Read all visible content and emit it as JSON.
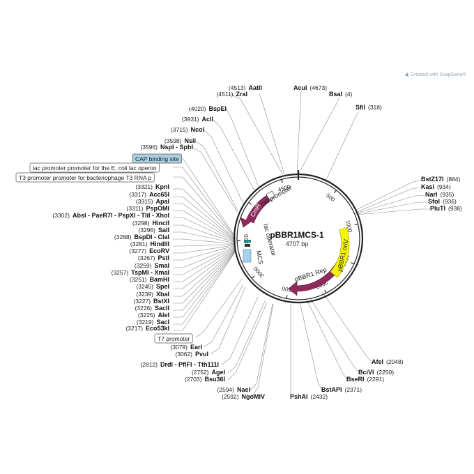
{
  "plasmid": {
    "name": "pBBR1MCS-1",
    "length_label": "4707 bp",
    "length": 4707
  },
  "logo": {
    "text": "Created with SnapGene®"
  },
  "ticks": [
    "500",
    "1000",
    "1500",
    "2000",
    "2500",
    "3000",
    "3500",
    "4000",
    "4500"
  ],
  "features": [
    {
      "label": "CmR",
      "color": "#8e2a5c"
    },
    {
      "label": "pBBR1 Rep",
      "color": "#8e2a5c"
    },
    {
      "label": "pBBR1 oriV",
      "color": "#f5f500"
    },
    {
      "label": "cat promoter",
      "color": "#ffffff"
    },
    {
      "label": "lac operator",
      "color": "#1d8a8a"
    },
    {
      "label": "MCS",
      "color": "#a9d1ec"
    }
  ],
  "boxed_labels": [
    {
      "text": "CAP binding site",
      "fill": "#a9d1e2"
    },
    {
      "text": "lac promoter promoter for the E. coli lac operon",
      "fill": "#ffffff"
    },
    {
      "text": "T3 promoter promoter for bacteriophage T3 RNA p",
      "fill": "#ffffff"
    },
    {
      "text": "T7 promoter",
      "fill": "#ffffff"
    }
  ],
  "sites": [
    {
      "name": "AatII",
      "pos": "(4513)"
    },
    {
      "name": "ZraI",
      "pos": "(4511)"
    },
    {
      "name": "AcuI",
      "pos": "(4673)"
    },
    {
      "name": "BsaI",
      "pos": "(4)"
    },
    {
      "name": "SfiI",
      "pos": "(318)"
    },
    {
      "name": "BspEI",
      "pos": "(4020)"
    },
    {
      "name": "AclI",
      "pos": "(3931)"
    },
    {
      "name": "NcoI",
      "pos": "(3715)"
    },
    {
      "name": "NsiI",
      "pos": "(3598)"
    },
    {
      "name": "NspI - SphI",
      "pos": "(3596)"
    },
    {
      "name": "KpnI",
      "pos": "(3321)"
    },
    {
      "name": "Acc65I",
      "pos": "(3317)"
    },
    {
      "name": "ApaI",
      "pos": "(3315)"
    },
    {
      "name": "PspOMI",
      "pos": "(3311)"
    },
    {
      "name": "AbsI - PaeR7I - PspXI - TliI - XhoI",
      "pos": "(3302)"
    },
    {
      "name": "HincII",
      "pos": "(3298)"
    },
    {
      "name": "SalI",
      "pos": "(3296)"
    },
    {
      "name": "BspDI - ClaI",
      "pos": "(3288)"
    },
    {
      "name": "HindIII",
      "pos": "(3281)"
    },
    {
      "name": "EcoRV",
      "pos": "(3277)"
    },
    {
      "name": "PstI",
      "pos": "(3267)"
    },
    {
      "name": "SmaI",
      "pos": "(3259)"
    },
    {
      "name": "TspMI - XmaI",
      "pos": "(3257)"
    },
    {
      "name": "BamHI",
      "pos": "(3251)"
    },
    {
      "name": "SpeI",
      "pos": "(3245)"
    },
    {
      "name": "XbaI",
      "pos": "(3239)"
    },
    {
      "name": "BstXI",
      "pos": "(3227)"
    },
    {
      "name": "SacII",
      "pos": "(3226)"
    },
    {
      "name": "AleI",
      "pos": "(3225)"
    },
    {
      "name": "SacI",
      "pos": "(3219)"
    },
    {
      "name": "Eco53kI",
      "pos": "(3217)"
    },
    {
      "name": "EarI",
      "pos": "(3079)"
    },
    {
      "name": "PvuI",
      "pos": "(3062)"
    },
    {
      "name": "DrdI - PflFI - Tth111I",
      "pos": "(2812)"
    },
    {
      "name": "AgeI",
      "pos": "(2752)"
    },
    {
      "name": "Bsu36I",
      "pos": "(2703)"
    },
    {
      "name": "NaeI",
      "pos": "(2594)"
    },
    {
      "name": "NgoMIV",
      "pos": "(2592)"
    },
    {
      "name": "PshAI",
      "pos": "(2432)"
    },
    {
      "name": "BstAPI",
      "pos": "(2371)"
    },
    {
      "name": "BseRI",
      "pos": "(2291)"
    },
    {
      "name": "BciVI",
      "pos": "(2250)"
    },
    {
      "name": "AfeI",
      "pos": "(2048)"
    },
    {
      "name": "BstZ17I",
      "pos": "(884)"
    },
    {
      "name": "KasI",
      "pos": "(934)"
    },
    {
      "name": "NarI",
      "pos": "(935)"
    },
    {
      "name": "SfoI",
      "pos": "(936)"
    },
    {
      "name": "PluTI",
      "pos": "(938)"
    }
  ]
}
